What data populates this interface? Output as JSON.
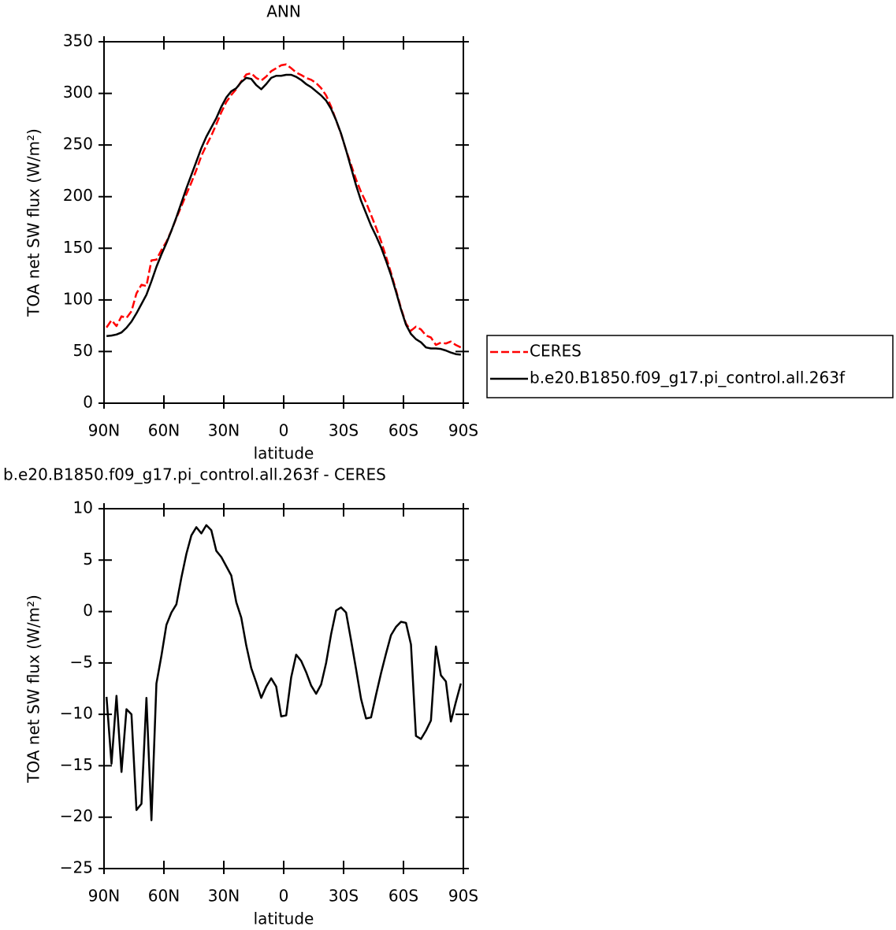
{
  "chart_data": [
    {
      "type": "line",
      "title": "ANN",
      "xlabel": "latitude",
      "ylabel": "TOA net SW flux (W/m²)",
      "x": [
        88.75,
        86.25,
        83.75,
        81.25,
        78.75,
        76.25,
        73.75,
        71.25,
        68.75,
        66.25,
        63.75,
        61.25,
        58.75,
        56.25,
        53.75,
        51.25,
        48.75,
        46.25,
        43.75,
        41.25,
        38.75,
        36.25,
        33.75,
        31.25,
        28.75,
        26.25,
        23.75,
        21.25,
        18.75,
        16.25,
        13.75,
        11.25,
        8.75,
        6.25,
        3.75,
        1.25,
        -1.25,
        -3.75,
        -6.25,
        -8.75,
        -11.25,
        -13.75,
        -16.25,
        -18.75,
        -21.25,
        -23.75,
        -26.25,
        -28.75,
        -31.25,
        -33.75,
        -36.25,
        -38.75,
        -41.25,
        -43.75,
        -46.25,
        -48.75,
        -51.25,
        -53.75,
        -56.25,
        -58.75,
        -61.25,
        -63.75,
        -66.25,
        -68.75,
        -71.25,
        -73.75,
        -76.25,
        -78.75,
        -81.25,
        -83.75,
        -86.25,
        -88.75
      ],
      "series": [
        {
          "name": "CERES",
          "color": "#ff0000",
          "dash": true,
          "values": [
            73.3,
            80.3,
            74.7,
            84.1,
            82.5,
            89,
            106.3,
            114.7,
            113.4,
            138.3,
            139,
            148.3,
            156.3,
            167.1,
            179.3,
            190.7,
            202.4,
            213.6,
            225.8,
            239.4,
            249.6,
            259.1,
            270.1,
            281.7,
            291.6,
            298.5,
            304.1,
            311.6,
            318.3,
            319.5,
            314.9,
            312.4,
            316.3,
            321.5,
            324.3,
            327.2,
            328.1,
            324.4,
            320.2,
            317.8,
            314.9,
            313.2,
            310,
            305.1,
            298,
            287.2,
            273.9,
            260.6,
            245.1,
            230.8,
            216.6,
            204.5,
            194.4,
            182.3,
            170.1,
            157,
            142.1,
            126.3,
            109.5,
            92,
            77.1,
            70.2,
            74.1,
            71.4,
            65.6,
            63.6,
            56.4,
            58.7,
            57.8,
            59.7,
            56.3,
            54
          ]
        },
        {
          "name": "b.e20.B1850.f09_g17.pi_control.all.263f",
          "color": "#000000",
          "values": [
            65,
            65.5,
            66.5,
            68.5,
            73,
            79,
            87,
            96,
            105,
            118,
            132,
            144,
            155,
            167,
            180,
            194,
            208,
            221,
            234,
            247,
            258,
            267,
            276,
            287,
            296,
            302,
            305,
            311,
            315,
            314,
            308,
            304,
            309,
            315,
            317,
            317,
            318,
            318,
            316,
            313,
            309,
            306,
            302,
            298,
            293,
            285,
            274,
            261,
            245,
            228,
            211,
            196,
            184,
            172,
            162,
            151,
            138,
            124,
            108,
            91,
            76,
            67,
            62,
            59,
            54,
            53,
            53,
            52.5,
            51,
            49,
            47.5,
            47
          ]
        }
      ],
      "xlim": [
        90,
        -90
      ],
      "xticks": [
        {
          "value": 90,
          "label": "90N"
        },
        {
          "value": 60,
          "label": "60N"
        },
        {
          "value": 30,
          "label": "30N"
        },
        0,
        {
          "value": -30,
          "label": "30S"
        },
        {
          "value": -60,
          "label": "60S"
        },
        {
          "value": -90,
          "label": "90S"
        }
      ],
      "ylim": [
        0,
        350
      ],
      "yticks": [
        0,
        50,
        100,
        150,
        200,
        250,
        300,
        350
      ],
      "legend": "outside-right"
    },
    {
      "type": "line",
      "title": "b.e20.B1850.f09_g17.pi_control.all.263f - CERES",
      "xlabel": "latitude",
      "ylabel": "TOA net SW flux (W/m²)",
      "x": [
        88.75,
        86.25,
        83.75,
        81.25,
        78.75,
        76.25,
        73.75,
        71.25,
        68.75,
        66.25,
        63.75,
        61.25,
        58.75,
        56.25,
        53.75,
        51.25,
        48.75,
        46.25,
        43.75,
        41.25,
        38.75,
        36.25,
        33.75,
        31.25,
        28.75,
        26.25,
        23.75,
        21.25,
        18.75,
        16.25,
        13.75,
        11.25,
        8.75,
        6.25,
        3.75,
        1.25,
        -1.25,
        -3.75,
        -6.25,
        -8.75,
        -11.25,
        -13.75,
        -16.25,
        -18.75,
        -21.25,
        -23.75,
        -26.25,
        -28.75,
        -31.25,
        -33.75,
        -36.25,
        -38.75,
        -41.25,
        -43.75,
        -46.25,
        -48.75,
        -51.25,
        -53.75,
        -56.25,
        -58.75,
        -61.25,
        -63.75,
        -66.25,
        -68.75,
        -71.25,
        -73.75,
        -76.25,
        -78.75,
        -81.25,
        -83.75,
        -86.25,
        -88.75
      ],
      "series": [
        {
          "color": "#000000",
          "values": [
            -8.3,
            -14.8,
            -8.2,
            -15.6,
            -9.5,
            -10,
            -19.3,
            -18.7,
            -8.4,
            -20.3,
            -7,
            -4.3,
            -1.3,
            -0.1,
            0.7,
            3.3,
            5.6,
            7.4,
            8.2,
            7.6,
            8.4,
            7.9,
            5.9,
            5.3,
            4.4,
            3.5,
            0.9,
            -0.6,
            -3.3,
            -5.5,
            -6.9,
            -8.4,
            -7.3,
            -6.5,
            -7.3,
            -10.2,
            -10.1,
            -6.4,
            -4.2,
            -4.8,
            -5.9,
            -7.2,
            -8,
            -7.1,
            -5,
            -2.2,
            0.1,
            0.4,
            -0.1,
            -2.8,
            -5.6,
            -8.5,
            -10.4,
            -10.3,
            -8.1,
            -6,
            -4.1,
            -2.3,
            -1.5,
            -1,
            -1.1,
            -3.2,
            -12.1,
            -12.4,
            -11.6,
            -10.6,
            -3.4,
            -6.2,
            -6.8,
            -10.7,
            -8.8,
            -7
          ]
        }
      ],
      "xlim": [
        90,
        -90
      ],
      "xticks": [
        {
          "value": 90,
          "label": "90N"
        },
        {
          "value": 60,
          "label": "60N"
        },
        {
          "value": 30,
          "label": "30N"
        },
        0,
        {
          "value": -30,
          "label": "30S"
        },
        {
          "value": -60,
          "label": "60S"
        },
        {
          "value": -90,
          "label": "90S"
        }
      ],
      "ylim": [
        -25,
        10
      ],
      "yticks": [
        {
          "value": -25,
          "label": "−25"
        },
        {
          "value": -20,
          "label": "−20"
        },
        {
          "value": -15,
          "label": "−15"
        },
        {
          "value": -10,
          "label": "−10"
        },
        {
          "value": -5,
          "label": "−5"
        },
        0,
        5,
        10
      ]
    }
  ]
}
